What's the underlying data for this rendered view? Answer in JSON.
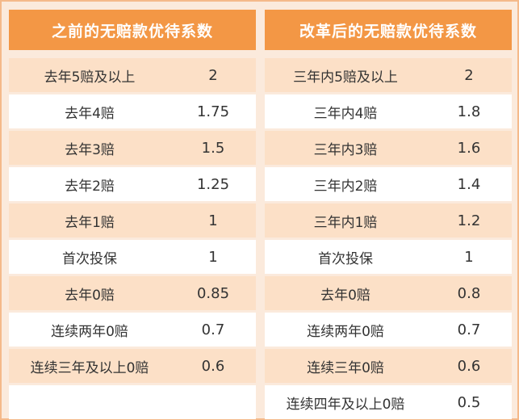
{
  "left": {
    "header": "之前的无赔款优待系数",
    "rows": [
      {
        "label": "去年5赔及以上",
        "value": "2"
      },
      {
        "label": "去年4赔",
        "value": "1.75"
      },
      {
        "label": "去年3赔",
        "value": "1.5"
      },
      {
        "label": "去年2赔",
        "value": "1.25"
      },
      {
        "label": "去年1赔",
        "value": "1"
      },
      {
        "label": "首次投保",
        "value": "1"
      },
      {
        "label": "去年0赔",
        "value": "0.85"
      },
      {
        "label": "连续两年0赔",
        "value": "0.7"
      },
      {
        "label": "连续三年及以上0赔",
        "value": "0.6"
      },
      {
        "label": "",
        "value": ""
      }
    ]
  },
  "right": {
    "header": "改革后的无赔款优待系数",
    "rows": [
      {
        "label": "三年内5赔及以上",
        "value": "2"
      },
      {
        "label": "三年内4赔",
        "value": "1.8"
      },
      {
        "label": "三年内3赔",
        "value": "1.6"
      },
      {
        "label": "三年内2赔",
        "value": "1.4"
      },
      {
        "label": "三年内1赔",
        "value": "1.2"
      },
      {
        "label": "首次投保",
        "value": "1"
      },
      {
        "label": "去年0赔",
        "value": "0.8"
      },
      {
        "label": "连续两年0赔",
        "value": "0.7"
      },
      {
        "label": "连续三年0赔",
        "value": "0.6"
      },
      {
        "label": "连续四年及以上0赔",
        "value": "0.5"
      }
    ]
  },
  "colors": {
    "header_bg": "#f39745",
    "row_tint": "#fce0c7",
    "row_plain": "#ffffff",
    "page_bg": "#fbeadc"
  }
}
